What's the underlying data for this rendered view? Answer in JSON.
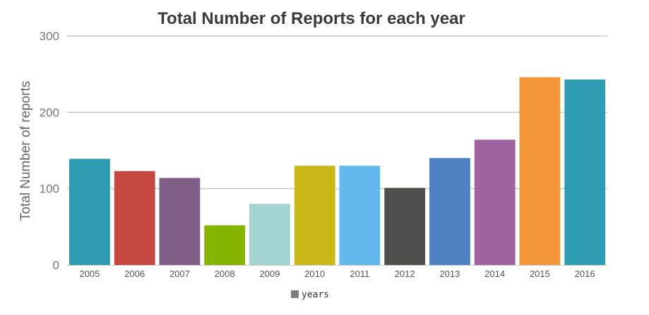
{
  "chart_data": {
    "type": "bar",
    "title": "Total Number of Reports for each year",
    "xlabel": "",
    "ylabel": "Total Number of reports",
    "ylim": [
      0,
      300
    ],
    "yticks": [
      0,
      100,
      200,
      300
    ],
    "grid": true,
    "legend": {
      "placement": "bottom-center",
      "entries": [
        {
          "label": "years",
          "color": "#808080"
        }
      ]
    },
    "categories": [
      "2005",
      "2006",
      "2007",
      "2008",
      "2009",
      "2010",
      "2011",
      "2012",
      "2013",
      "2014",
      "2015",
      "2016"
    ],
    "values": [
      139,
      123,
      114,
      52,
      80,
      130,
      130,
      101,
      140,
      164,
      246,
      243
    ],
    "colors": [
      "#2e9cb0",
      "#c44740",
      "#7f5f86",
      "#85b500",
      "#a3d4d1",
      "#cab718",
      "#64b9ec",
      "#4f4f4d",
      "#4f82c3",
      "#9e62a0",
      "#f5973b",
      "#2e9cb0"
    ]
  }
}
